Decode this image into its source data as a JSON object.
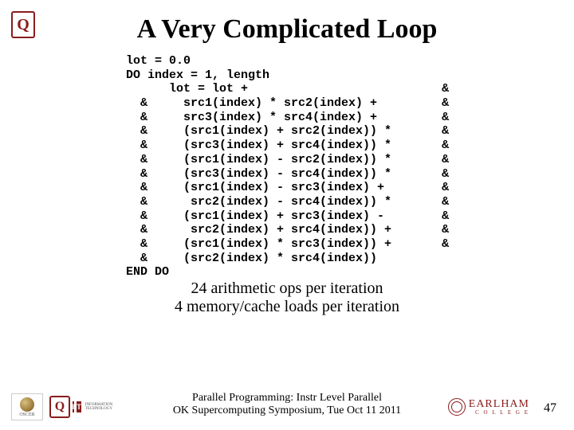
{
  "title": {
    "text": "A Very Complicated Loop",
    "fontsize": 34
  },
  "code": {
    "fontsize": 15,
    "lines": [
      "lot = 0.0",
      "DO index = 1, length",
      "      lot = lot +                           &",
      "  &     src1(index) * src2(index) +         &",
      "  &     src3(index) * src4(index) +         &",
      "  &     (src1(index) + src2(index)) *       &",
      "  &     (src3(index) + src4(index)) *       &",
      "  &     (src1(index) - src2(index)) *       &",
      "  &     (src3(index) - src4(index)) *       &",
      "  &     (src1(index) - src3(index) +        &",
      "  &      src2(index) - src4(index)) *       &",
      "  &     (src1(index) + src3(index) -        &",
      "  &      src2(index) + src4(index)) +       &",
      "  &     (src1(index) * src3(index)) +       &",
      "  &     (src2(index) * src4(index))",
      "END DO"
    ]
  },
  "notes": {
    "fontsize": 20,
    "line1": "24 arithmetic ops per iteration",
    "line2": "4 memory/cache loads per iteration"
  },
  "footer": {
    "fontsize": 14,
    "line1": "Parallel Programming: Instr Level Parallel",
    "line2": "OK Supercomputing Symposium, Tue Oct 11 2011"
  },
  "page_number": "47",
  "logos": {
    "ou_text": "Q",
    "oscer_text": "OSCER",
    "it_i": "I",
    "it_t": "T",
    "it_label": "INFORMATION\nTECHNOLOGY",
    "earlham_name": "EARLHAM",
    "earlham_sub": "C O L L E G E"
  },
  "colors": {
    "text": "#000000",
    "crimson": "#8a1c1c",
    "background": "#ffffff"
  }
}
